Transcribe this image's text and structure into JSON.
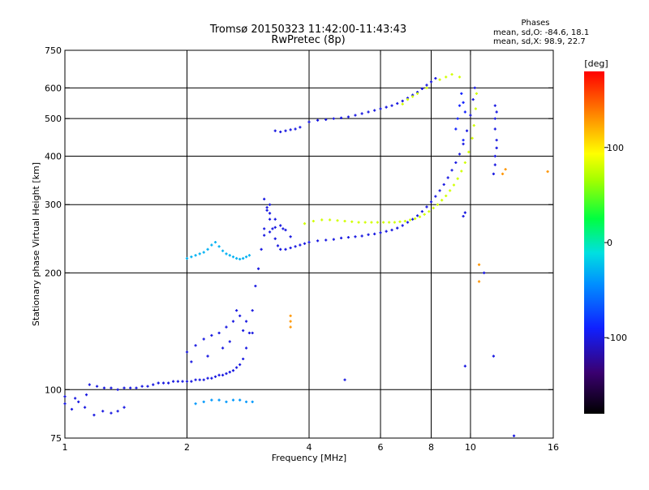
{
  "chart_data": {
    "type": "scatter",
    "title": "Tromsø 20150323 11:42:00-11:43:43",
    "subtitle": "RwPretec (8p)",
    "xlabel": "Frequency [MHz]",
    "ylabel": "Stationary phase Virtual Height [km]",
    "xscale": "log",
    "yscale": "log",
    "xlim": [
      1,
      16
    ],
    "ylim": [
      75,
      750
    ],
    "x_ticks": [
      {
        "v": 1,
        "label": "1"
      },
      {
        "v": 2,
        "label": "2"
      },
      {
        "v": 4,
        "label": "4"
      },
      {
        "v": 6,
        "label": "6"
      },
      {
        "v": 8,
        "label": "8"
      },
      {
        "v": 10,
        "label": "10"
      },
      {
        "v": 16,
        "label": "16"
      }
    ],
    "y_ticks": [
      {
        "v": 75,
        "label": "75"
      },
      {
        "v": 100,
        "label": "100"
      },
      {
        "v": 200,
        "label": "200"
      },
      {
        "v": 300,
        "label": "300"
      },
      {
        "v": 400,
        "label": "400"
      },
      {
        "v": 500,
        "label": "500"
      },
      {
        "v": 600,
        "label": "600"
      },
      {
        "v": 750,
        "label": "750"
      }
    ],
    "grid_x": [
      2,
      4,
      6,
      8,
      10
    ],
    "grid_y": [
      100,
      200,
      300,
      400,
      500,
      600
    ],
    "grid": true,
    "phases_box": {
      "heading": "Phases",
      "line_o": "mean, sd,O: -84.6, 18.1",
      "line_x": "mean, sd,X:  98.9, 22.7"
    },
    "colorbar": {
      "label": "[deg]",
      "range": [
        -180,
        180
      ],
      "ticks": [
        {
          "v": 100,
          "label": "100"
        },
        {
          "v": 0,
          "label": "0"
        },
        {
          "v": -100,
          "label": "-100"
        }
      ]
    },
    "series": [
      {
        "color_phase": -100,
        "points": [
          [
            1.0,
            92
          ],
          [
            1.04,
            89
          ],
          [
            1.08,
            93
          ],
          [
            1.12,
            90
          ],
          [
            1.18,
            86
          ],
          [
            1.24,
            88
          ],
          [
            1.3,
            87
          ],
          [
            1.35,
            88
          ],
          [
            1.4,
            90
          ],
          [
            1.0,
            96
          ],
          [
            1.06,
            95
          ],
          [
            1.13,
            97
          ]
        ]
      },
      {
        "color_phase": -100,
        "points": [
          [
            1.15,
            103
          ],
          [
            1.2,
            102
          ],
          [
            1.25,
            101
          ],
          [
            1.3,
            101
          ],
          [
            1.35,
            100
          ],
          [
            1.4,
            101
          ],
          [
            1.45,
            101
          ],
          [
            1.5,
            101
          ],
          [
            1.55,
            102
          ],
          [
            1.6,
            102
          ],
          [
            1.65,
            103
          ],
          [
            1.7,
            104
          ],
          [
            1.75,
            104
          ],
          [
            1.8,
            104
          ],
          [
            1.85,
            105
          ],
          [
            1.9,
            105
          ],
          [
            1.95,
            105
          ],
          [
            2.0,
            105
          ],
          [
            2.05,
            105
          ],
          [
            2.1,
            106
          ],
          [
            2.15,
            106
          ],
          [
            2.2,
            106
          ],
          [
            2.25,
            107
          ],
          [
            2.3,
            107
          ],
          [
            2.35,
            108
          ],
          [
            2.4,
            109
          ],
          [
            2.45,
            109
          ],
          [
            2.5,
            110
          ],
          [
            2.55,
            111
          ],
          [
            2.6,
            112
          ],
          [
            2.65,
            114
          ],
          [
            2.7,
            116
          ],
          [
            2.75,
            120
          ],
          [
            2.8,
            128
          ],
          [
            2.85,
            140
          ],
          [
            2.9,
            160
          ],
          [
            2.95,
            185
          ],
          [
            3.0,
            205
          ],
          [
            3.05,
            230
          ],
          [
            3.1,
            260
          ],
          [
            3.15,
            290
          ],
          [
            3.2,
            300
          ]
        ]
      },
      {
        "color_phase": -100,
        "points": [
          [
            2.0,
            125
          ],
          [
            2.1,
            130
          ],
          [
            2.2,
            135
          ],
          [
            2.3,
            138
          ],
          [
            2.4,
            140
          ],
          [
            2.5,
            145
          ],
          [
            2.6,
            150
          ],
          [
            2.7,
            155
          ],
          [
            2.8,
            150
          ],
          [
            2.9,
            140
          ],
          [
            2.45,
            128
          ],
          [
            2.55,
            133
          ],
          [
            2.65,
            160
          ],
          [
            2.75,
            142
          ],
          [
            2.05,
            118
          ],
          [
            2.25,
            122
          ]
        ]
      },
      {
        "color_phase": -30,
        "points": [
          [
            2.0,
            218
          ],
          [
            2.05,
            220
          ],
          [
            2.1,
            222
          ],
          [
            2.15,
            224
          ],
          [
            2.2,
            226
          ],
          [
            2.25,
            230
          ],
          [
            2.3,
            236
          ],
          [
            2.35,
            240
          ],
          [
            2.4,
            234
          ],
          [
            2.45,
            228
          ],
          [
            2.5,
            224
          ],
          [
            2.55,
            222
          ],
          [
            2.6,
            220
          ],
          [
            2.65,
            218
          ],
          [
            2.7,
            217
          ],
          [
            2.75,
            218
          ],
          [
            2.8,
            220
          ],
          [
            2.85,
            222
          ]
        ]
      },
      {
        "color_phase": -40,
        "points": [
          [
            2.1,
            92
          ],
          [
            2.2,
            93
          ],
          [
            2.3,
            94
          ],
          [
            2.4,
            94
          ],
          [
            2.5,
            93
          ],
          [
            2.6,
            94
          ],
          [
            2.7,
            94
          ],
          [
            2.8,
            93
          ],
          [
            2.9,
            93
          ]
        ]
      },
      {
        "color_phase": -100,
        "points": [
          [
            3.1,
            310
          ],
          [
            3.15,
            295
          ],
          [
            3.2,
            275
          ],
          [
            3.25,
            260
          ],
          [
            3.3,
            245
          ],
          [
            3.35,
            235
          ],
          [
            3.4,
            230
          ],
          [
            3.5,
            230
          ],
          [
            3.6,
            232
          ],
          [
            3.7,
            234
          ],
          [
            3.8,
            236
          ],
          [
            3.9,
            238
          ],
          [
            4.0,
            240
          ],
          [
            4.2,
            242
          ],
          [
            4.4,
            243
          ],
          [
            4.6,
            244
          ],
          [
            4.8,
            246
          ],
          [
            5.0,
            247
          ],
          [
            5.2,
            248
          ],
          [
            5.4,
            249
          ],
          [
            5.6,
            251
          ],
          [
            5.8,
            252
          ],
          [
            6.0,
            254
          ],
          [
            6.2,
            256
          ],
          [
            6.4,
            258
          ],
          [
            6.6,
            261
          ],
          [
            6.8,
            265
          ],
          [
            7.0,
            270
          ],
          [
            7.2,
            275
          ],
          [
            7.4,
            281
          ],
          [
            7.6,
            288
          ],
          [
            7.8,
            296
          ],
          [
            8.0,
            305
          ],
          [
            8.2,
            315
          ],
          [
            8.4,
            326
          ],
          [
            8.6,
            338
          ],
          [
            8.8,
            352
          ],
          [
            9.0,
            368
          ],
          [
            9.2,
            385
          ],
          [
            9.4,
            405
          ],
          [
            9.6,
            430
          ],
          [
            9.8,
            465
          ],
          [
            10.0,
            510
          ],
          [
            10.15,
            560
          ],
          [
            10.25,
            600
          ]
        ]
      },
      {
        "color_phase": -100,
        "points": [
          [
            3.1,
            250
          ],
          [
            3.2,
            255
          ],
          [
            3.3,
            262
          ],
          [
            3.4,
            265
          ],
          [
            3.5,
            258
          ],
          [
            3.6,
            248
          ],
          [
            3.2,
            285
          ],
          [
            3.3,
            275
          ],
          [
            3.45,
            260
          ]
        ]
      },
      {
        "color_phase": 80,
        "points": [
          [
            3.9,
            268
          ],
          [
            4.1,
            272
          ],
          [
            4.3,
            274
          ],
          [
            4.5,
            274
          ],
          [
            4.7,
            273
          ],
          [
            4.9,
            272
          ],
          [
            5.1,
            271
          ],
          [
            5.3,
            270
          ],
          [
            5.5,
            270
          ],
          [
            5.7,
            270
          ],
          [
            5.9,
            270
          ],
          [
            6.1,
            270
          ],
          [
            6.3,
            270
          ],
          [
            6.5,
            270
          ],
          [
            6.7,
            271
          ],
          [
            6.9,
            272
          ],
          [
            7.1,
            274
          ],
          [
            7.3,
            276
          ],
          [
            7.5,
            279
          ],
          [
            7.7,
            283
          ],
          [
            7.9,
            288
          ],
          [
            8.1,
            294
          ],
          [
            8.3,
            300
          ],
          [
            8.5,
            308
          ],
          [
            8.7,
            316
          ],
          [
            8.9,
            326
          ],
          [
            9.1,
            337
          ],
          [
            9.3,
            350
          ],
          [
            9.5,
            366
          ],
          [
            9.7,
            385
          ],
          [
            9.9,
            410
          ],
          [
            10.1,
            445
          ],
          [
            10.2,
            480
          ],
          [
            10.3,
            530
          ],
          [
            10.35,
            580
          ]
        ]
      },
      {
        "color_phase": -100,
        "points": [
          [
            3.3,
            465
          ],
          [
            3.4,
            462
          ],
          [
            3.5,
            465
          ],
          [
            3.6,
            468
          ],
          [
            3.7,
            470
          ],
          [
            3.8,
            475
          ],
          [
            4.0,
            490
          ],
          [
            4.2,
            495
          ],
          [
            4.4,
            497
          ],
          [
            4.6,
            500
          ],
          [
            4.8,
            502
          ],
          [
            5.0,
            505
          ],
          [
            5.2,
            510
          ],
          [
            5.4,
            515
          ],
          [
            5.6,
            520
          ],
          [
            5.8,
            525
          ],
          [
            6.0,
            530
          ],
          [
            6.2,
            535
          ],
          [
            6.4,
            540
          ],
          [
            6.6,
            547
          ],
          [
            6.8,
            555
          ],
          [
            7.0,
            565
          ],
          [
            7.2,
            575
          ],
          [
            7.4,
            585
          ],
          [
            7.6,
            597
          ],
          [
            7.8,
            610
          ],
          [
            8.0,
            622
          ],
          [
            8.2,
            635
          ]
        ]
      },
      {
        "color_phase": 80,
        "points": [
          [
            6.8,
            545
          ],
          [
            7.0,
            560
          ],
          [
            7.2,
            570
          ],
          [
            7.4,
            580
          ],
          [
            7.8,
            600
          ],
          [
            8.4,
            630
          ],
          [
            8.7,
            640
          ],
          [
            9.0,
            650
          ],
          [
            9.4,
            640
          ]
        ]
      },
      {
        "color_phase": -90,
        "points": [
          [
            9.2,
            470
          ],
          [
            9.3,
            500
          ],
          [
            9.4,
            540
          ],
          [
            9.5,
            580
          ],
          [
            9.6,
            550
          ],
          [
            9.7,
            520
          ],
          [
            9.6,
            440
          ]
        ]
      },
      {
        "color_phase": 130,
        "points": [
          [
            3.6,
            150
          ],
          [
            3.6,
            145
          ],
          [
            3.6,
            155
          ],
          [
            10.5,
            190
          ],
          [
            10.5,
            210
          ],
          [
            12.0,
            360
          ],
          [
            12.2,
            370
          ],
          [
            15.5,
            365
          ]
        ]
      },
      {
        "color_phase": -100,
        "points": [
          [
            11.5,
            540
          ],
          [
            11.6,
            520
          ],
          [
            11.5,
            500
          ],
          [
            11.5,
            470
          ],
          [
            11.6,
            440
          ],
          [
            11.6,
            420
          ],
          [
            11.5,
            400
          ],
          [
            11.5,
            380
          ],
          [
            11.4,
            360
          ],
          [
            10.8,
            200
          ],
          [
            11.4,
            122
          ],
          [
            12.8,
            76
          ],
          [
            9.7,
            286
          ],
          [
            9.6,
            280
          ],
          [
            9.7,
            115
          ],
          [
            4.9,
            106
          ]
        ]
      }
    ]
  }
}
